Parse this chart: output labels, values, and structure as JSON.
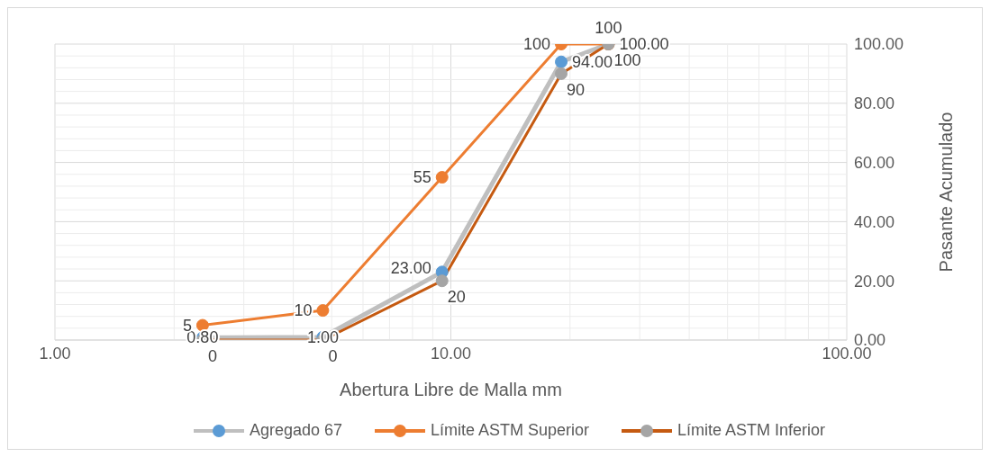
{
  "chart_data": {
    "type": "line",
    "xlabel": "Abertura Libre de Malla mm",
    "ylabel": "Pasante Acumulado",
    "log": "x",
    "grid": true,
    "legend": "bottom",
    "marker": "circle",
    "line_style": "solid",
    "xlim": [
      1,
      100
    ],
    "xticks": [
      {
        "value": 1,
        "label": "1.00"
      },
      {
        "value": 10,
        "label": "10.00"
      },
      {
        "value": 100,
        "label": "100.00"
      }
    ],
    "ylim": [
      0,
      100
    ],
    "yticks": [
      {
        "value": 0,
        "label": "0.00"
      },
      {
        "value": 20,
        "label": "20.00"
      },
      {
        "value": 40,
        "label": "40.00"
      },
      {
        "value": 60,
        "label": "60.00"
      },
      {
        "value": 80,
        "label": "80.00"
      },
      {
        "value": 100,
        "label": "100.00"
      }
    ],
    "x": [
      2.36,
      4.75,
      9.5,
      19,
      25
    ],
    "series": [
      {
        "name": "Agregado 67",
        "color": "#bfbfbf",
        "colors": [
          "#5b9bd5",
          "#5b9bd5",
          "#5b9bd5",
          "#5b9bd5",
          "#a5a5a5"
        ],
        "values": [
          0.8,
          1,
          23,
          94,
          100
        ],
        "value_labels": [
          "0.80",
          "1.00",
          "23.00",
          "94.00",
          "100.00"
        ]
      },
      {
        "name": "Límite ASTM Superior",
        "color": "#ed7d31",
        "colors": [
          "#ed7d31",
          "#ed7d31",
          "#ed7d31",
          "#ed7d31",
          "#ed7d31"
        ],
        "values": [
          5,
          10,
          55,
          100,
          100
        ],
        "value_labels": [
          "5",
          "10",
          "55",
          "100",
          "100"
        ]
      },
      {
        "name": "Límite ASTM Inferior",
        "color": "#c55a11",
        "colors": [
          "#a5a5a5",
          "#a5a5a5",
          "#a5a5a5",
          "#a5a5a5",
          "#a5a5a5"
        ],
        "values": [
          0,
          0,
          20,
          90,
          100
        ],
        "value_labels": [
          "0",
          "0",
          "20",
          "90",
          "100"
        ]
      }
    ]
  }
}
